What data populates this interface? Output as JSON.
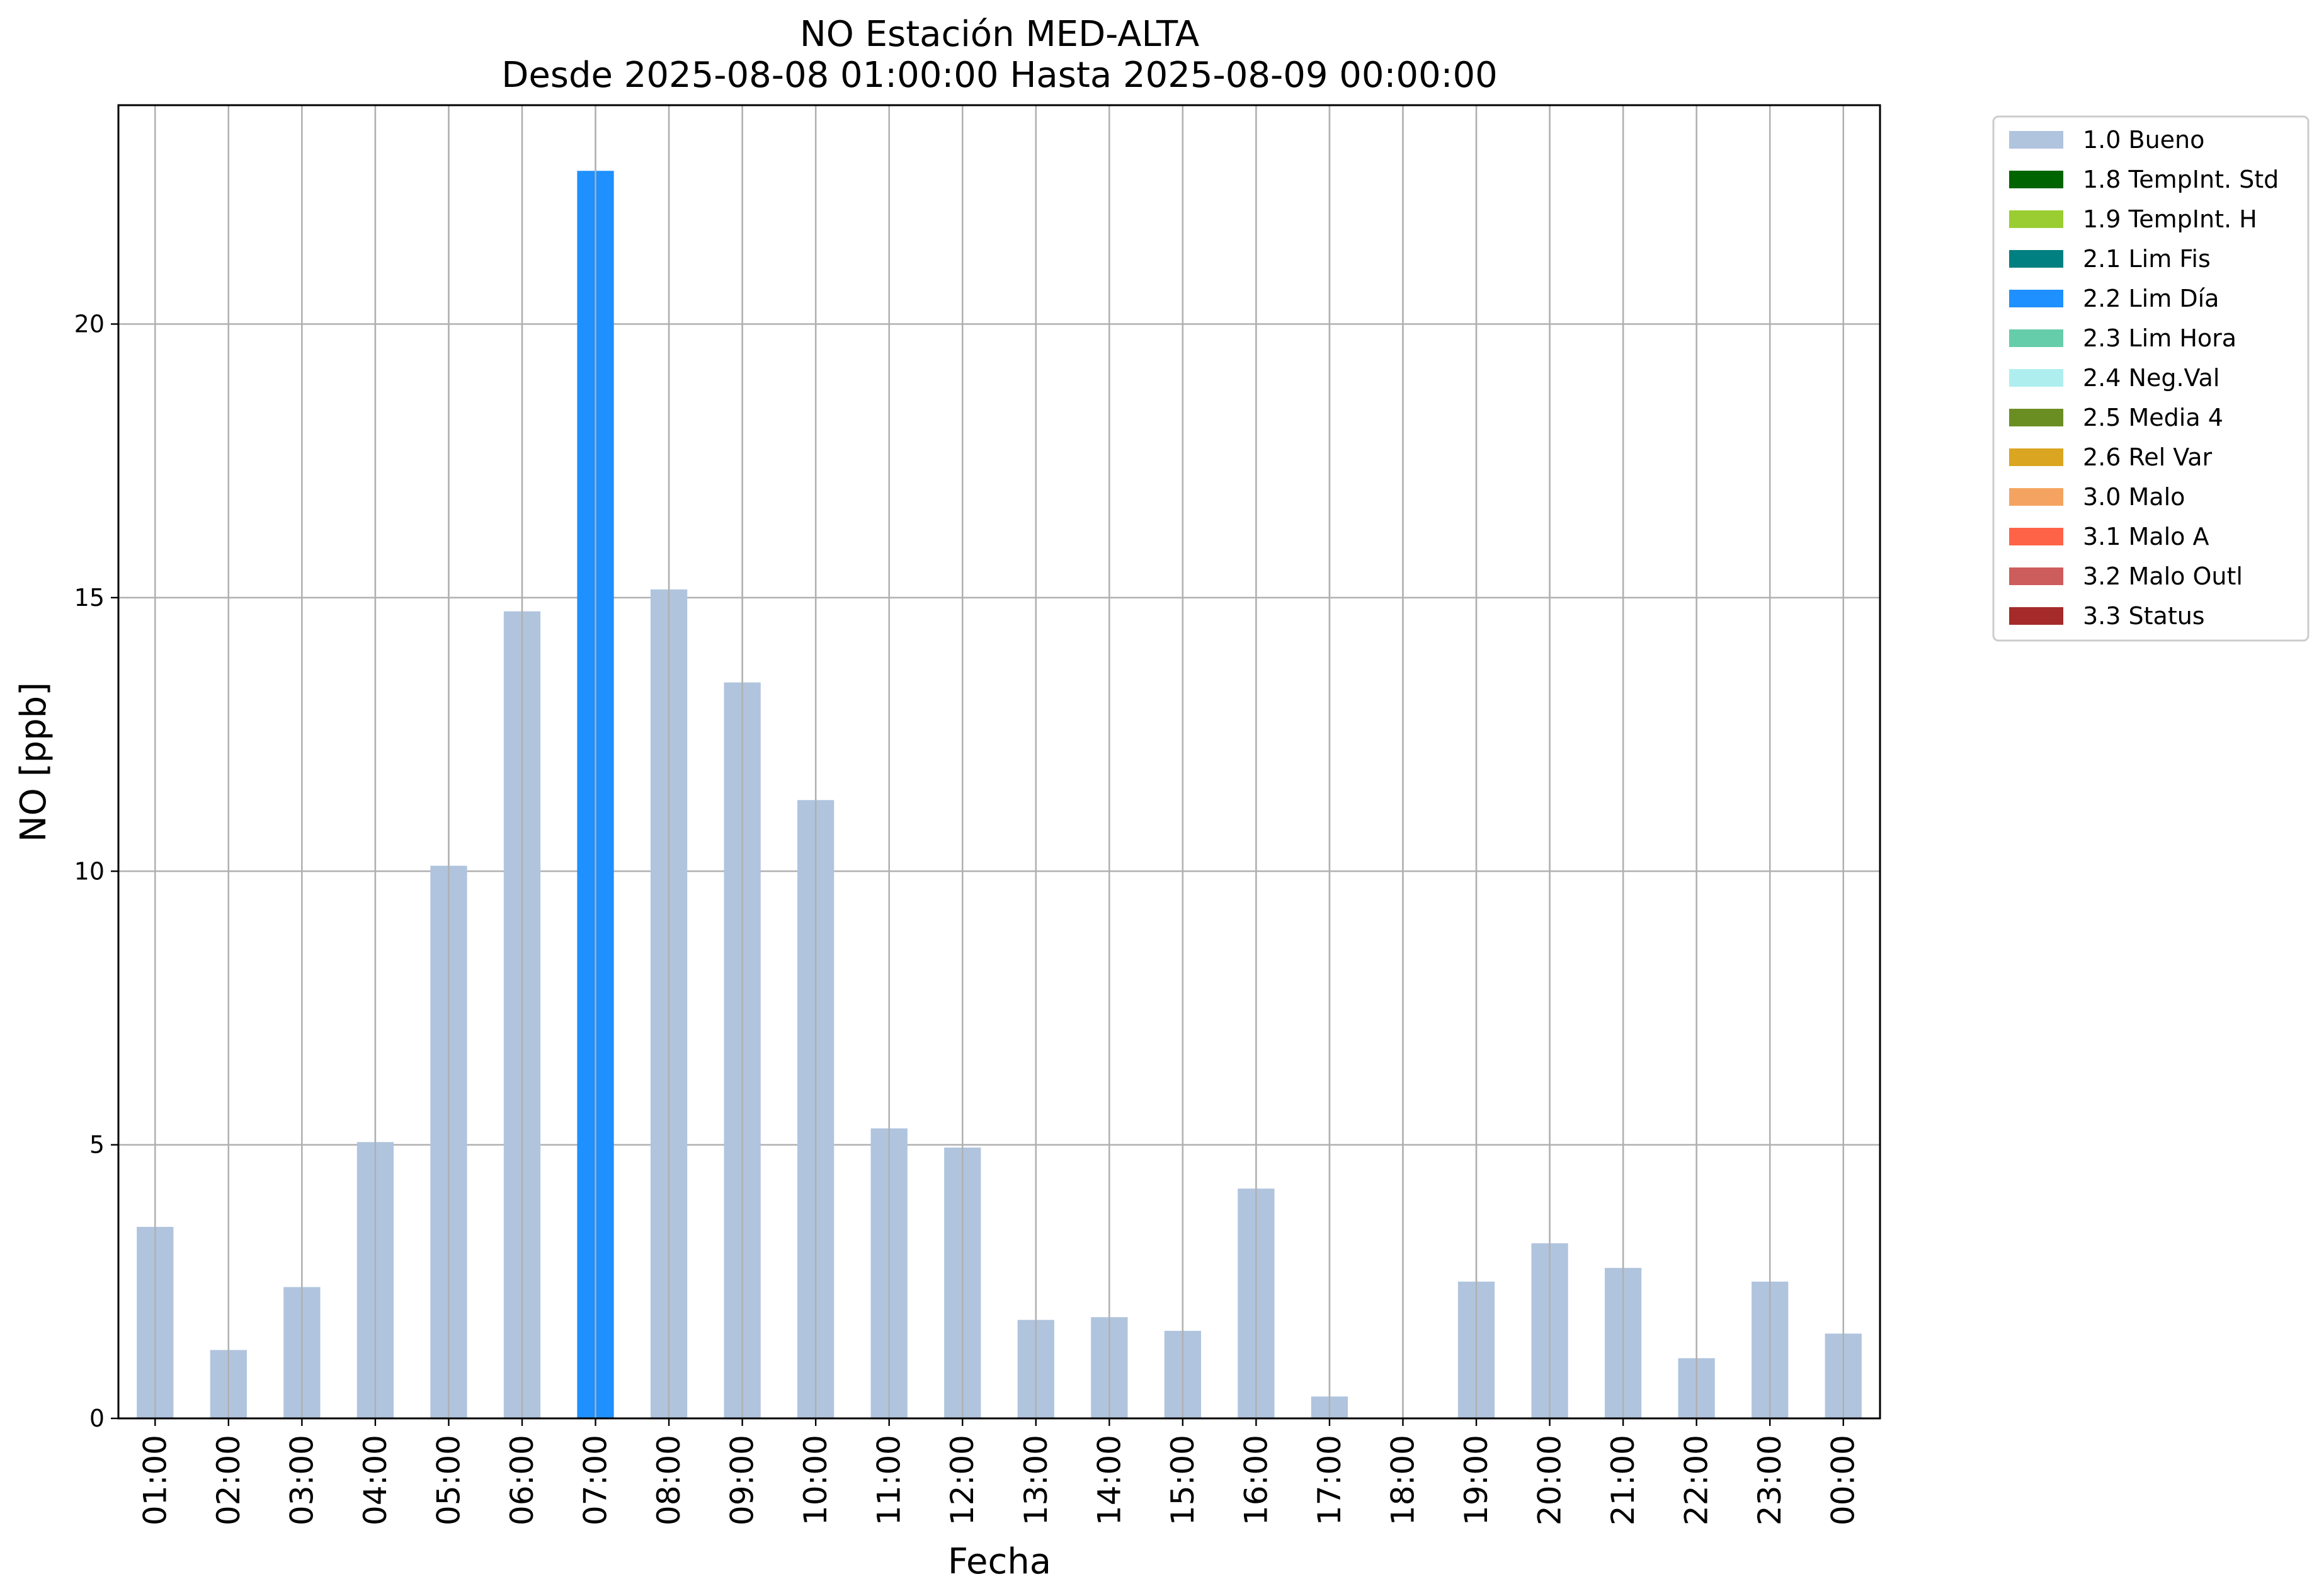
{
  "chart_data": {
    "type": "bar",
    "title": "NO Estación MED-ALTA",
    "subtitle": "Desde 2025-08-08 01:00:00 Hasta 2025-08-09 00:00:00",
    "xlabel": "Fecha",
    "ylabel": "NO [ppb]",
    "ylim": [
      0,
      24
    ],
    "yticks": [
      0,
      5,
      10,
      15,
      20
    ],
    "grid": true,
    "legend_position": "outside-top-right",
    "categories": [
      "01:00",
      "02:00",
      "03:00",
      "04:00",
      "05:00",
      "06:00",
      "07:00",
      "08:00",
      "09:00",
      "10:00",
      "11:00",
      "12:00",
      "13:00",
      "14:00",
      "15:00",
      "16:00",
      "17:00",
      "18:00",
      "19:00",
      "20:00",
      "21:00",
      "22:00",
      "23:00",
      "00:00"
    ],
    "values": [
      3.5,
      1.25,
      2.4,
      5.05,
      10.1,
      14.75,
      22.8,
      15.15,
      13.45,
      11.3,
      5.3,
      4.95,
      1.8,
      1.85,
      1.6,
      4.2,
      0.4,
      0,
      2.5,
      3.2,
      2.75,
      1.1,
      2.5,
      1.55
    ],
    "flags": [
      "1.0 Bueno",
      "1.0 Bueno",
      "1.0 Bueno",
      "1.0 Bueno",
      "1.0 Bueno",
      "1.0 Bueno",
      "2.2 Lim Día",
      "1.0 Bueno",
      "1.0 Bueno",
      "1.0 Bueno",
      "1.0 Bueno",
      "1.0 Bueno",
      "1.0 Bueno",
      "1.0 Bueno",
      "1.0 Bueno",
      "1.0 Bueno",
      "1.0 Bueno",
      "1.0 Bueno",
      "1.0 Bueno",
      "1.0 Bueno",
      "1.0 Bueno",
      "1.0 Bueno",
      "1.0 Bueno",
      "1.0 Bueno"
    ],
    "legend": [
      {
        "name": "1.0 Bueno",
        "color": "#b0c4de"
      },
      {
        "name": "1.8 TempInt. Std",
        "color": "#006400"
      },
      {
        "name": "1.9 TempInt. H",
        "color": "#9acd32"
      },
      {
        "name": "2.1 Lim Fis",
        "color": "#008080"
      },
      {
        "name": "2.2 Lim Día",
        "color": "#1e90ff"
      },
      {
        "name": "2.3 Lim Hora",
        "color": "#66cdaa"
      },
      {
        "name": "2.4 Neg.Val",
        "color": "#afeeee"
      },
      {
        "name": "2.5 Media 4",
        "color": "#6b8e23"
      },
      {
        "name": "2.6 Rel Var",
        "color": "#daa520"
      },
      {
        "name": "3.0 Malo",
        "color": "#f4a460"
      },
      {
        "name": "3.1 Malo A",
        "color": "#ff6347"
      },
      {
        "name": "3.2 Malo Outl",
        "color": "#cd5c5c"
      },
      {
        "name": "3.3 Status",
        "color": "#a52a2a"
      }
    ]
  }
}
